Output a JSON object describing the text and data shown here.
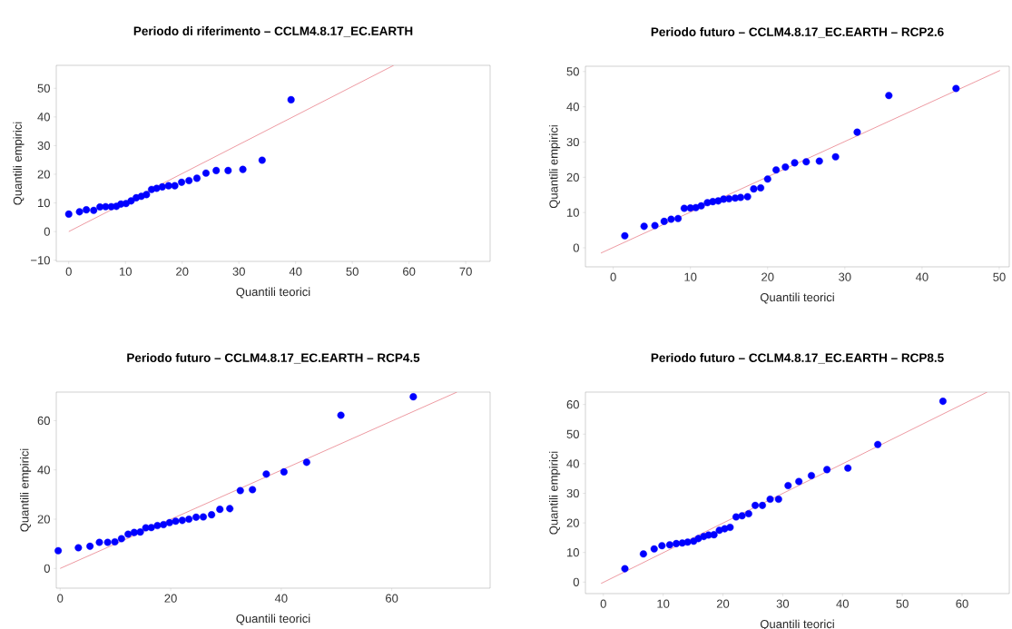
{
  "chart_data": [
    {
      "type": "scatter",
      "title": "Periodo di riferimento – CCLM4.8.17_EC.EARTH",
      "xlabel": "Quantili teorici",
      "ylabel": "Quantili empirici",
      "xlim": [
        -2.2,
        74.3
      ],
      "ylim": [
        -10.4,
        58
      ],
      "xticks": [
        0,
        10,
        20,
        30,
        40,
        50,
        60,
        70
      ],
      "yticks": [
        {
          "value": -10,
          "label": "−10"
        },
        0,
        10,
        20,
        30,
        40,
        50
      ],
      "series": [
        {
          "type": "scatter",
          "marker": "circle",
          "color": "#0000ff",
          "x": [
            0,
            1.9,
            3.1,
            4.4,
            5.5,
            6.5,
            7.5,
            8.4,
            9.2,
            10.1,
            11,
            11.9,
            12.8,
            13.7,
            14.6,
            15.5,
            16.5,
            17.6,
            18.7,
            19.9,
            21.2,
            22.6,
            24.2,
            26,
            28.1,
            30.7,
            34.1,
            39.2
          ],
          "values": [
            6.1,
            6.9,
            7.6,
            7.4,
            8.6,
            8.7,
            8.7,
            8.8,
            9.6,
            9.8,
            10.7,
            11.8,
            12.3,
            12.9,
            14.7,
            15.1,
            15.6,
            16,
            16,
            17.2,
            17.8,
            18.6,
            20.4,
            21.3,
            21.3,
            21.7,
            24.9,
            46
          ]
        },
        {
          "type": "line",
          "marker": "none",
          "color": "#e8808a",
          "x": [
            0,
            57.3
          ],
          "values": [
            0,
            58
          ]
        }
      ]
    },
    {
      "type": "scatter",
      "title": "Periodo futuro – CCLM4.8.17_EC.EARTH – RCP2.6",
      "xlabel": "Quantili teorici",
      "ylabel": "Quantili empirici",
      "xlim": [
        -3.6,
        51.3
      ],
      "ylim": [
        -5.4,
        51.5
      ],
      "xticks": [
        0,
        10,
        20,
        30,
        40,
        50
      ],
      "yticks": [
        0,
        10,
        20,
        30,
        40,
        50
      ],
      "series": [
        {
          "type": "scatter",
          "marker": "circle",
          "color": "#0000ff",
          "x": [
            1.5,
            4,
            5.4,
            6.6,
            7.5,
            8.4,
            9.2,
            10,
            10.7,
            11.4,
            12.2,
            12.9,
            13.6,
            14.3,
            15,
            15.8,
            16.5,
            17.4,
            18.2,
            19.1,
            20,
            21.1,
            22.3,
            23.5,
            25,
            26.7,
            28.8,
            31.6,
            35.7,
            44.4
          ],
          "values": [
            3.4,
            6.1,
            6.3,
            7.5,
            8.1,
            8.3,
            11.2,
            11.3,
            11.4,
            11.9,
            12.8,
            13.1,
            13.3,
            13.8,
            13.9,
            14.1,
            14.3,
            14.5,
            16.7,
            17,
            19.5,
            22.1,
            22.9,
            24.1,
            24.4,
            24.6,
            25.8,
            32.8,
            43.2,
            45.2
          ]
        },
        {
          "type": "line",
          "marker": "none",
          "color": "#e8808a",
          "x": [
            -1.6,
            50.1
          ],
          "values": [
            -1.5,
            50.3
          ]
        }
      ]
    },
    {
      "type": "scatter",
      "title": "Periodo futuro – CCLM4.8.17_EC.EARTH – RCP4.5",
      "xlabel": "Quantili teorici",
      "ylabel": "Quantili empirici",
      "xlim": [
        -0.7,
        77.8
      ],
      "ylim": [
        -8,
        71.6
      ],
      "xticks": [
        0,
        20,
        40,
        60
      ],
      "yticks": [
        0,
        20,
        40,
        60
      ],
      "series": [
        {
          "type": "scatter",
          "marker": "circle",
          "color": "#0000ff",
          "x": [
            -0.35,
            3.3,
            5.4,
            7.1,
            8.6,
            9.9,
            11.1,
            12.3,
            13.4,
            14.5,
            15.5,
            16.5,
            17.6,
            18.7,
            19.8,
            20.9,
            22.1,
            23.3,
            24.6,
            25.9,
            27.4,
            28.9,
            30.7,
            32.6,
            34.8,
            37.3,
            40.5,
            44.6,
            50.8,
            63.9
          ],
          "values": [
            7.2,
            8.4,
            9,
            10.6,
            10.6,
            10.8,
            12.1,
            13.9,
            14.6,
            14.8,
            16.5,
            16.6,
            17.4,
            17.8,
            18.6,
            19.2,
            19.5,
            20,
            20.8,
            20.9,
            21.8,
            24,
            24.3,
            31.6,
            32,
            38.3,
            39.2,
            43.1,
            62.2,
            69.7
          ]
        },
        {
          "type": "line",
          "marker": "none",
          "color": "#e8808a",
          "x": [
            0,
            71.8
          ],
          "values": [
            0,
            71.6
          ]
        }
      ]
    },
    {
      "type": "scatter",
      "title": "Periodo futuro – CCLM4.8.17_EC.EARTH – RCP8.5",
      "xlabel": "Quantili teorici",
      "ylabel": "Quantili empirici",
      "xlim": [
        -3,
        67.9
      ],
      "ylim": [
        -3.9,
        64.2
      ],
      "xticks": [
        0,
        10,
        20,
        30,
        40,
        50,
        60
      ],
      "yticks": [
        0,
        10,
        20,
        30,
        40,
        50,
        60
      ],
      "series": [
        {
          "type": "scatter",
          "marker": "circle",
          "color": "#0000ff",
          "x": [
            3.6,
            6.7,
            8.5,
            9.8,
            11.1,
            12.2,
            13.2,
            14.1,
            15.1,
            15.9,
            16.8,
            17.6,
            18.5,
            19.4,
            20.3,
            21.2,
            22.2,
            23.2,
            24.3,
            25.4,
            26.6,
            27.9,
            29.3,
            30.9,
            32.7,
            34.8,
            37.4,
            40.9,
            45.9,
            56.8
          ],
          "values": [
            4.5,
            9.5,
            11.2,
            12.3,
            12.6,
            13,
            13.2,
            13.5,
            13.8,
            14.7,
            15.4,
            15.9,
            16,
            17.5,
            18,
            18.5,
            22,
            22.4,
            23.1,
            25.9,
            25.9,
            28,
            28,
            32.6,
            34,
            36,
            38,
            38.5,
            46.5,
            61.1
          ]
        },
        {
          "type": "line",
          "marker": "none",
          "color": "#e8808a",
          "x": [
            -0.4,
            64.2
          ],
          "values": [
            -0.5,
            64.2
          ]
        }
      ]
    }
  ]
}
